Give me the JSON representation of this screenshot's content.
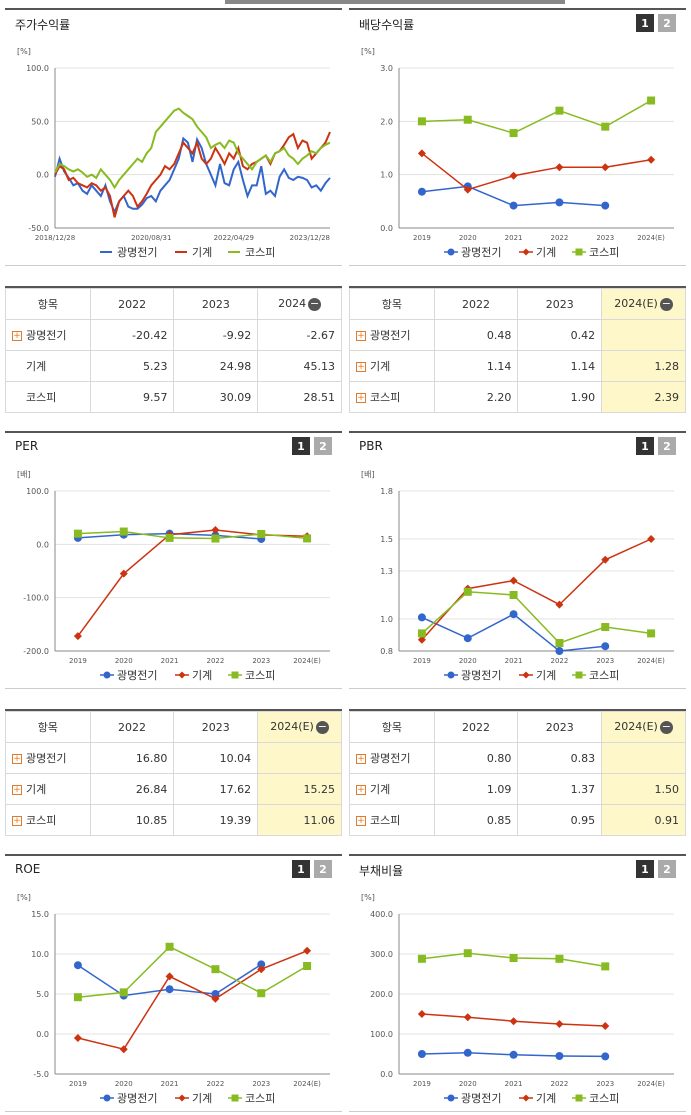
{
  "colors": {
    "blue": "#3366cc",
    "red": "#cc3311",
    "green": "#88bb22"
  },
  "legend": [
    "광명전기",
    "기계",
    "코스피"
  ],
  "panels": {
    "stock": {
      "title": "주가수익률",
      "unit": "[%]"
    },
    "div": {
      "title": "배당수익률",
      "unit": "[%]"
    },
    "per": {
      "title": "PER",
      "unit": "[배]"
    },
    "pbr": {
      "title": "PBR",
      "unit": "[배]"
    },
    "roe": {
      "title": "ROE",
      "unit": "[%]"
    },
    "debt": {
      "title": "부채비율",
      "unit": "[%]"
    }
  },
  "buttons": {
    "one": "1",
    "two": "2"
  },
  "tables": {
    "stock": {
      "headers": [
        "항목",
        "2022",
        "2023",
        "2024"
      ],
      "rows": [
        {
          "name": "광명전기",
          "plus": true,
          "v": [
            "-20.42",
            "-9.92",
            "-2.67"
          ]
        },
        {
          "name": "기계",
          "plus": false,
          "v": [
            "5.23",
            "24.98",
            "45.13"
          ]
        },
        {
          "name": "코스피",
          "plus": false,
          "v": [
            "9.57",
            "30.09",
            "28.51"
          ]
        }
      ]
    },
    "div": {
      "headers": [
        "항목",
        "2022",
        "2023",
        "2024(E)"
      ],
      "rows": [
        {
          "name": "광명전기",
          "plus": true,
          "v": [
            "0.48",
            "0.42",
            ""
          ]
        },
        {
          "name": "기계",
          "plus": true,
          "v": [
            "1.14",
            "1.14",
            "1.28"
          ]
        },
        {
          "name": "코스피",
          "plus": true,
          "v": [
            "2.20",
            "1.90",
            "2.39"
          ]
        }
      ]
    },
    "per": {
      "headers": [
        "항목",
        "2022",
        "2023",
        "2024(E)"
      ],
      "rows": [
        {
          "name": "광명전기",
          "plus": true,
          "v": [
            "16.80",
            "10.04",
            ""
          ]
        },
        {
          "name": "기계",
          "plus": true,
          "v": [
            "26.84",
            "17.62",
            "15.25"
          ]
        },
        {
          "name": "코스피",
          "plus": true,
          "v": [
            "10.85",
            "19.39",
            "11.06"
          ]
        }
      ]
    },
    "pbr": {
      "headers": [
        "항목",
        "2022",
        "2023",
        "2024(E)"
      ],
      "rows": [
        {
          "name": "광명전기",
          "plus": true,
          "v": [
            "0.80",
            "0.83",
            ""
          ]
        },
        {
          "name": "기계",
          "plus": true,
          "v": [
            "1.09",
            "1.37",
            "1.50"
          ]
        },
        {
          "name": "코스피",
          "plus": true,
          "v": [
            "0.85",
            "0.95",
            "0.91"
          ]
        }
      ]
    }
  },
  "chart_data": [
    {
      "type": "line",
      "title": "주가수익률",
      "ylabel": "[%]",
      "ylim": [
        -50,
        100
      ],
      "yticks": [
        "100.0",
        "50.0",
        "0.0",
        "-50.0"
      ],
      "xticks": [
        "2018/12/28",
        "2020/08/31",
        "2022/04/29",
        "2023/12/28"
      ],
      "xlim": [
        0,
        60
      ],
      "series": [
        {
          "name": "광명전기",
          "x": [
            0,
            1,
            2,
            3,
            4,
            5,
            6,
            7,
            8,
            9,
            10,
            11,
            12,
            13,
            14,
            15,
            16,
            17,
            18,
            19,
            20,
            21,
            22,
            23,
            24,
            25,
            26,
            27,
            28,
            29,
            30,
            31,
            32,
            33,
            34,
            35,
            36,
            37,
            38,
            39,
            40,
            41,
            42,
            43,
            44,
            45,
            46,
            47,
            48,
            49,
            50,
            51,
            52,
            53,
            54,
            55,
            56,
            57,
            58,
            59,
            60
          ],
          "y": [
            -2,
            15,
            3,
            -3,
            -10,
            -8,
            -15,
            -18,
            -10,
            -15,
            -20,
            -10,
            -25,
            -35,
            -25,
            -20,
            -30,
            -32,
            -32,
            -28,
            -22,
            -20,
            -25,
            -15,
            -10,
            -5,
            5,
            15,
            34,
            30,
            12,
            33,
            25,
            10,
            0,
            -10,
            10,
            -8,
            -10,
            5,
            12,
            -5,
            -20,
            -10,
            -10,
            8,
            -18,
            -15,
            -20,
            -2,
            5,
            -3,
            -5,
            -2,
            -3,
            -5,
            -12,
            -10,
            -15,
            -8,
            -3
          ]
        },
        {
          "name": "기계",
          "x": [
            0,
            1,
            2,
            3,
            4,
            5,
            6,
            7,
            8,
            9,
            10,
            11,
            12,
            13,
            14,
            15,
            16,
            17,
            18,
            19,
            20,
            21,
            22,
            23,
            24,
            25,
            26,
            27,
            28,
            29,
            30,
            31,
            32,
            33,
            34,
            35,
            36,
            37,
            38,
            39,
            40,
            41,
            42,
            43,
            44,
            45,
            46,
            47,
            48,
            49,
            50,
            51,
            52,
            53,
            54,
            55,
            56,
            57,
            58,
            59,
            60
          ],
          "y": [
            0,
            8,
            5,
            -5,
            -3,
            -8,
            -10,
            -12,
            -8,
            -10,
            -15,
            -12,
            -20,
            -40,
            -25,
            -20,
            -15,
            -20,
            -30,
            -25,
            -18,
            -10,
            -5,
            0,
            8,
            5,
            10,
            20,
            30,
            25,
            20,
            30,
            15,
            10,
            15,
            25,
            18,
            10,
            20,
            15,
            25,
            8,
            5,
            10,
            12,
            15,
            18,
            10,
            20,
            22,
            28,
            35,
            38,
            25,
            32,
            30,
            15,
            20,
            25,
            30,
            40
          ]
        },
        {
          "name": "코스피",
          "x": [
            0,
            1,
            2,
            3,
            4,
            5,
            6,
            7,
            8,
            9,
            10,
            11,
            12,
            13,
            14,
            15,
            16,
            17,
            18,
            19,
            20,
            21,
            22,
            23,
            24,
            25,
            26,
            27,
            28,
            29,
            30,
            31,
            32,
            33,
            34,
            35,
            36,
            37,
            38,
            39,
            40,
            41,
            42,
            43,
            44,
            45,
            46,
            47,
            48,
            49,
            50,
            51,
            52,
            53,
            54,
            55,
            56,
            57,
            58,
            59,
            60
          ],
          "y": [
            2,
            10,
            8,
            5,
            3,
            5,
            2,
            -2,
            0,
            -3,
            5,
            0,
            -5,
            -12,
            -5,
            0,
            5,
            10,
            15,
            12,
            20,
            25,
            40,
            45,
            50,
            55,
            60,
            62,
            58,
            55,
            52,
            45,
            40,
            35,
            25,
            28,
            30,
            25,
            32,
            30,
            20,
            15,
            10,
            5,
            12,
            15,
            18,
            12,
            20,
            22,
            25,
            18,
            15,
            10,
            15,
            18,
            22,
            20,
            25,
            28,
            30
          ]
        }
      ]
    },
    {
      "type": "line",
      "title": "배당수익률",
      "ylabel": "[%]",
      "ylim": [
        0,
        3
      ],
      "yticks": [
        "3.0",
        "2.0",
        "1.0",
        "0.0"
      ],
      "categories": [
        "2019",
        "2020",
        "2021",
        "2022",
        "2023",
        "2024(E)"
      ],
      "series": [
        {
          "name": "광명전기",
          "values": [
            0.68,
            0.78,
            0.42,
            0.48,
            0.42,
            null
          ]
        },
        {
          "name": "기계",
          "values": [
            1.4,
            0.72,
            0.98,
            1.14,
            1.14,
            1.28
          ]
        },
        {
          "name": "코스피",
          "values": [
            2.0,
            2.03,
            1.78,
            2.2,
            1.9,
            2.39
          ]
        }
      ]
    },
    {
      "type": "line",
      "title": "PER",
      "ylabel": "[배]",
      "ylim": [
        -200,
        100
      ],
      "yticks": [
        "100.0",
        "0.0",
        "-100.0",
        "-200.0"
      ],
      "categories": [
        "2019",
        "2020",
        "2021",
        "2022",
        "2023",
        "2024(E)"
      ],
      "series": [
        {
          "name": "광명전기",
          "values": [
            12,
            18,
            20,
            16.8,
            10.04,
            null
          ]
        },
        {
          "name": "기계",
          "values": [
            -172,
            -55,
            18,
            26.84,
            17.62,
            15.25
          ]
        },
        {
          "name": "코스피",
          "values": [
            20,
            24,
            12,
            10.85,
            19.39,
            11.06
          ]
        }
      ]
    },
    {
      "type": "line",
      "title": "PBR",
      "ylabel": "[배]",
      "ylim": [
        0.8,
        1.8
      ],
      "yticks": [
        "1.8",
        "1.5",
        "1.3",
        "1.0",
        "0.8"
      ],
      "categories": [
        "2019",
        "2020",
        "2021",
        "2022",
        "2023",
        "2024(E)"
      ],
      "series": [
        {
          "name": "광명전기",
          "values": [
            1.01,
            0.88,
            1.03,
            0.8,
            0.83,
            null
          ]
        },
        {
          "name": "기계",
          "values": [
            0.87,
            1.19,
            1.24,
            1.09,
            1.37,
            1.5
          ]
        },
        {
          "name": "코스피",
          "values": [
            0.91,
            1.17,
            1.15,
            0.85,
            0.95,
            0.91
          ]
        }
      ]
    },
    {
      "type": "line",
      "title": "ROE",
      "ylabel": "[%]",
      "ylim": [
        -5,
        15
      ],
      "yticks": [
        "15.0",
        "10.0",
        "5.0",
        "0.0",
        "-5.0"
      ],
      "categories": [
        "2019",
        "2020",
        "2021",
        "2022",
        "2023",
        "2024(E)"
      ],
      "series": [
        {
          "name": "광명전기",
          "values": [
            8.6,
            4.8,
            5.6,
            5.0,
            8.7,
            null
          ]
        },
        {
          "name": "기계",
          "values": [
            -0.5,
            -1.9,
            7.2,
            4.4,
            8.1,
            10.4
          ]
        },
        {
          "name": "코스피",
          "values": [
            4.6,
            5.2,
            10.9,
            8.1,
            5.1,
            8.5
          ]
        }
      ]
    },
    {
      "type": "line",
      "title": "부채비율",
      "ylabel": "[%]",
      "ylim": [
        0,
        400
      ],
      "yticks": [
        "400.0",
        "300.0",
        "200.0",
        "100.0",
        "0.0"
      ],
      "categories": [
        "2019",
        "2020",
        "2021",
        "2022",
        "2023",
        "2024(E)"
      ],
      "series": [
        {
          "name": "광명전기",
          "values": [
            50,
            53,
            48,
            45,
            44,
            null
          ]
        },
        {
          "name": "기계",
          "values": [
            150,
            142,
            132,
            125,
            120,
            null
          ]
        },
        {
          "name": "코스피",
          "values": [
            288,
            302,
            290,
            288,
            269,
            null
          ]
        }
      ]
    }
  ]
}
